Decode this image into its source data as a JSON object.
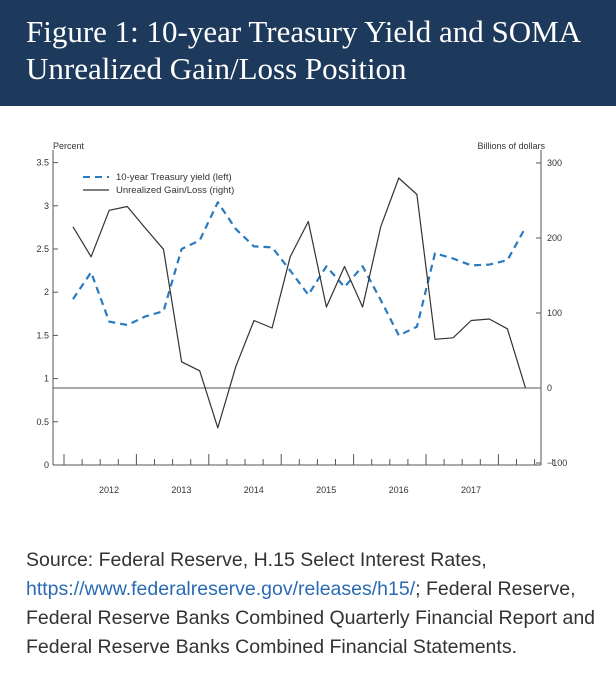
{
  "header": {
    "title": "Figure 1: 10-year Treasury Yield and SOMA Unrealized Gain/Loss Position"
  },
  "colors": {
    "header_bg": "#1d3a5c",
    "yield_line": "#2a7abf",
    "gain_loss_line": "#333333",
    "link": "#2a6bb3"
  },
  "chart_data": {
    "type": "line",
    "left_axis": {
      "label": "Percent",
      "range": [
        0,
        3.5
      ],
      "ticks": [
        "0",
        "0.5",
        "1",
        "1.5",
        "2",
        "2.5",
        "3",
        "3.5"
      ]
    },
    "right_axis": {
      "label": "Billions of dollars",
      "range": [
        -100,
        300
      ],
      "ticks": [
        "−100",
        "0",
        "100",
        "200",
        "300"
      ]
    },
    "x_labels": [
      "2012",
      "2013",
      "2014",
      "2015",
      "2016",
      "2017"
    ],
    "x": [
      "2011Q3",
      "2011Q4",
      "2012Q1",
      "2012Q2",
      "2012Q3",
      "2012Q4",
      "2013Q1",
      "2013Q2",
      "2013Q3",
      "2013Q4",
      "2014Q1",
      "2014Q2",
      "2014Q3",
      "2014Q4",
      "2015Q1",
      "2015Q2",
      "2015Q3",
      "2015Q4",
      "2016Q1",
      "2016Q2",
      "2016Q3",
      "2016Q4",
      "2017Q1",
      "2017Q2",
      "2017Q3",
      "2017Q4"
    ],
    "series": [
      {
        "name": "10-year Treasury yield (left)",
        "axis": "left",
        "style": "dashed",
        "values": [
          1.92,
          2.23,
          1.66,
          1.62,
          1.72,
          1.78,
          2.5,
          2.6,
          3.04,
          2.73,
          2.53,
          2.52,
          2.25,
          1.97,
          2.3,
          2.06,
          2.3,
          1.91,
          1.5,
          1.6,
          2.45,
          2.39,
          2.31,
          2.32,
          2.37,
          2.75
        ]
      },
      {
        "name": "Unrealized Gain/Loss (right)",
        "axis": "right",
        "style": "solid",
        "values": [
          215,
          175,
          237,
          242,
          213,
          185,
          35,
          23,
          -53,
          29,
          90,
          80,
          175,
          222,
          108,
          162,
          108,
          215,
          280,
          258,
          65,
          67,
          90,
          92,
          79,
          0
        ]
      }
    ],
    "grid": false,
    "legend_position": "top-left"
  },
  "source": {
    "prefix": "Source: Federal Reserve, H.15 Select Interest Rates, ",
    "link_text": "https://www.federalreserve.gov/releases/h15/",
    "suffix": "; Federal Reserve, Federal Reserve Banks Combined Quarterly Financial Report and Federal Reserve Banks Combined Financial Statements."
  }
}
